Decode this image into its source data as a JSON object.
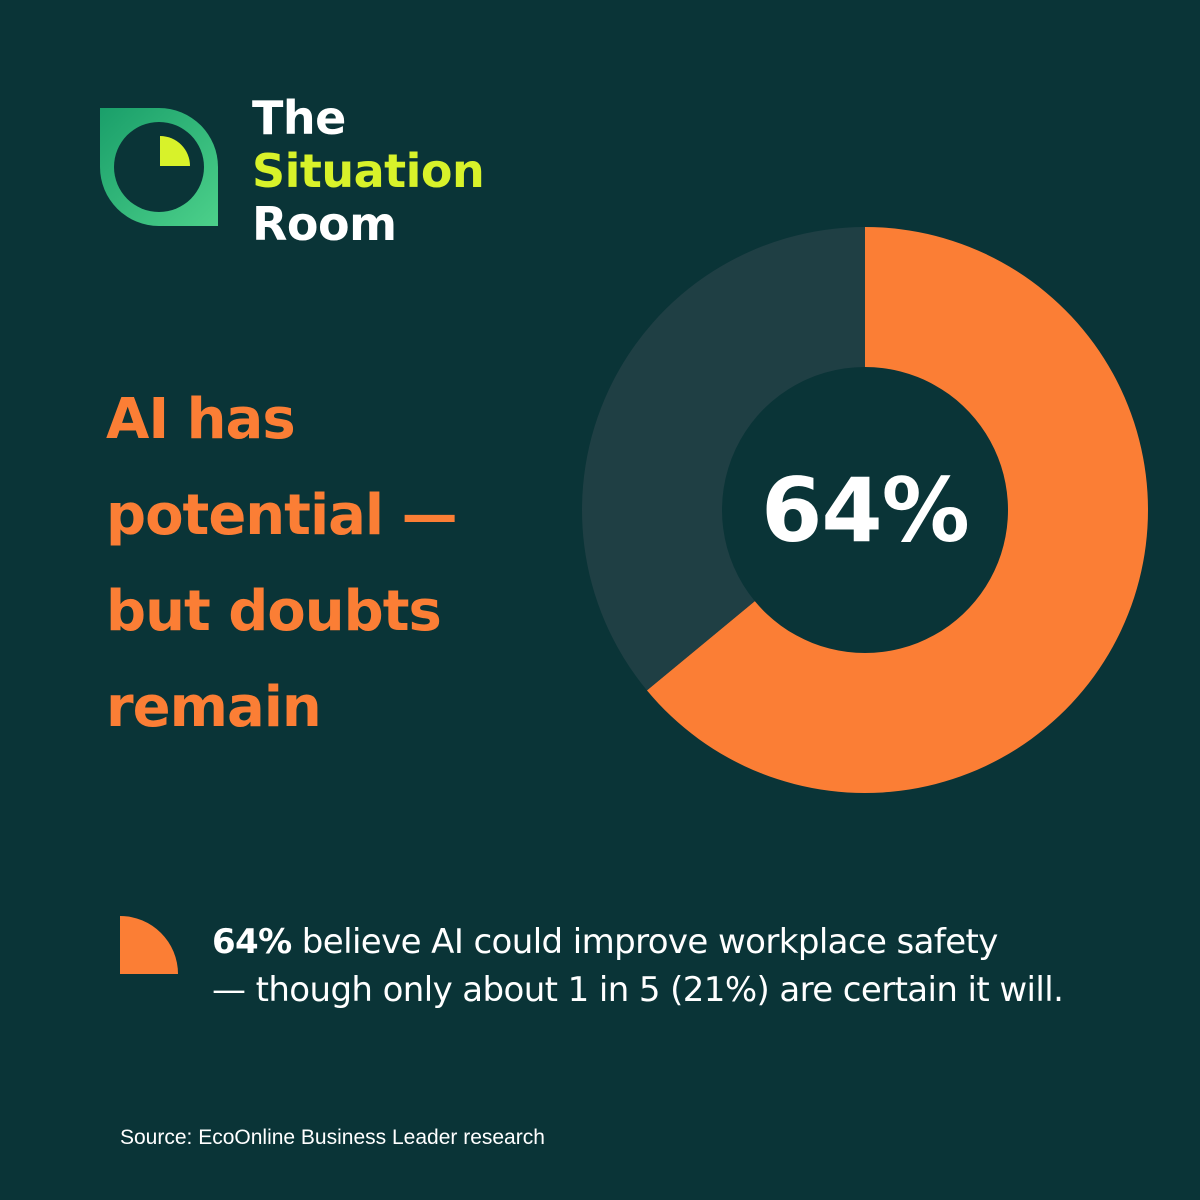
{
  "brand": {
    "line1": "The",
    "line2": "Situation",
    "line3": "Room"
  },
  "headline": {
    "line1": "AI has",
    "line2": "potential —",
    "line3": "but doubts",
    "line4": "remain"
  },
  "chart_data": {
    "type": "pie",
    "subtype": "donut",
    "center_label": "64%",
    "slices": [
      {
        "value": 64,
        "color": "#fb7e35"
      },
      {
        "value": 36,
        "color": "#1f3f44"
      }
    ]
  },
  "finding": {
    "highlight": "64%",
    "text_line1": " believe AI could improve workplace safety",
    "text_line2": "— though only about 1 in 5 (21%) are certain it will."
  },
  "source": "Source: EcoOnline Business Leader research",
  "colors": {
    "background": "#0a3437",
    "accent_orange": "#fb7e35",
    "accent_lime": "#d8f22a",
    "ring_muted": "#1f3f44",
    "logo_green_start": "#1a9f6a",
    "logo_green_end": "#4cd08a"
  },
  "icons": {
    "logo": "situation-room-logo-icon",
    "bullet": "quarter-circle-bullet-icon"
  }
}
